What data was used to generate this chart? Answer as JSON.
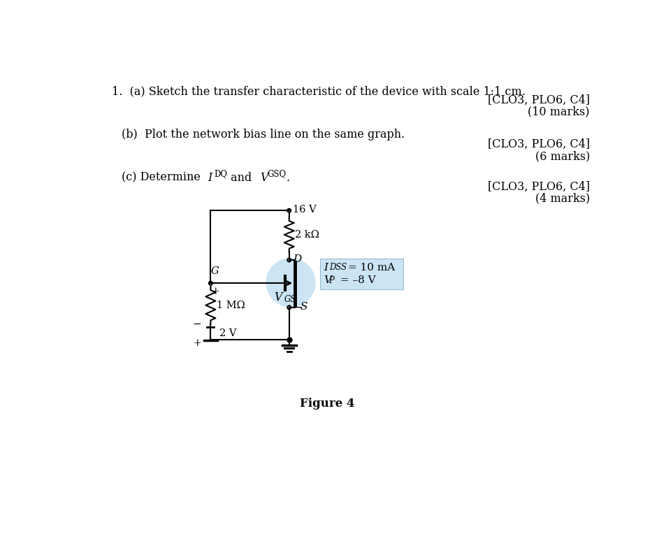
{
  "bg_color": "#ffffff",
  "text_color": "#000000",
  "circuit_color": "#000000",
  "bubble_color": "#cce5f5",
  "box_color": "#cce5f5",
  "fig_width": 9.54,
  "fig_height": 7.97,
  "title_text": "1.  (a) Sketch the transfer characteristic of the device with scale 1:1 cm.",
  "part_b_text": "(b)  Plot the network bias line on the same graph.",
  "right_annotation_1": "[CLO3, PLO6, C4]",
  "right_marks_1": "(10 marks)",
  "right_annotation_2": "[CLO3, PLO6, C4]",
  "right_marks_2": "(6 marks)",
  "right_annotation_3": "[CLO3, PLO6, C4]",
  "right_marks_3": "(4 marks)",
  "fig_caption": "Figure 4",
  "voltage_supply": "16 V",
  "resistor_top_label": "2 kΩ",
  "drain_label": "D",
  "gate_label": "G",
  "source_label": "S",
  "r_left_label": "1 MΩ",
  "battery_label": "2 V",
  "vgs_label": "V",
  "vgs_sub": "GS",
  "idss_val": " = 10 mA",
  "vp_val": " = –8 V",
  "plus_sign": "+",
  "minus_sign": "−"
}
